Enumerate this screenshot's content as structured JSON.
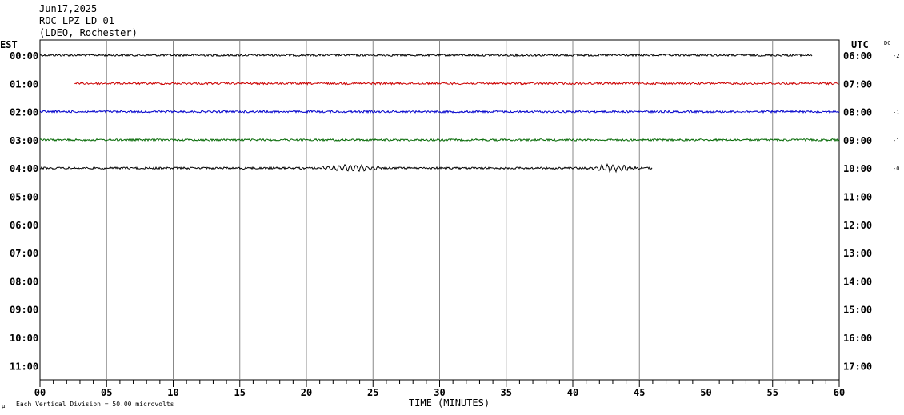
{
  "header": {
    "date": "Jun17,2025",
    "station": "ROC LPZ LD 01",
    "network": "(LDEO, Rochester)"
  },
  "chart_data": {
    "type": "line",
    "title": "Jun17,2025 ROC LPZ LD 01 (LDEO, Rochester)",
    "left_axis_label": "EST",
    "right_axis_label": "UTC",
    "dc_label": "DC",
    "xlabel": "TIME (MINUTES)",
    "xlim": [
      0,
      60
    ],
    "x_ticks": [
      "00",
      "05",
      "10",
      "15",
      "20",
      "25",
      "30",
      "35",
      "40",
      "45",
      "50",
      "55",
      "60"
    ],
    "grid": true,
    "scale_note_symbol": "μ",
    "scale_note": "Each Vertical Division =   50.00 microvolts",
    "rows": [
      {
        "est": "00:00",
        "utc": "06:00",
        "dc": "-2"
      },
      {
        "est": "01:00",
        "utc": "07:00",
        "dc": ""
      },
      {
        "est": "02:00",
        "utc": "08:00",
        "dc": "-1"
      },
      {
        "est": "03:00",
        "utc": "09:00",
        "dc": "-1"
      },
      {
        "est": "04:00",
        "utc": "10:00",
        "dc": "-0"
      },
      {
        "est": "05:00",
        "utc": "11:00",
        "dc": ""
      },
      {
        "est": "06:00",
        "utc": "12:00",
        "dc": ""
      },
      {
        "est": "07:00",
        "utc": "13:00",
        "dc": ""
      },
      {
        "est": "08:00",
        "utc": "14:00",
        "dc": ""
      },
      {
        "est": "09:00",
        "utc": "15:00",
        "dc": ""
      },
      {
        "est": "10:00",
        "utc": "16:00",
        "dc": ""
      },
      {
        "est": "11:00",
        "utc": "17:00",
        "dc": ""
      }
    ],
    "series": [
      {
        "row": 0,
        "color": "#000000",
        "x_start": 0,
        "x_end": 58.0
      },
      {
        "row": 1,
        "color": "#cc0000",
        "x_start": 2.6,
        "x_end": 60
      },
      {
        "row": 2,
        "color": "#0000cc",
        "x_start": 0,
        "x_end": 60
      },
      {
        "row": 3,
        "color": "#006600",
        "x_start": 0,
        "x_end": 60
      },
      {
        "row": 4,
        "color": "#000000",
        "x_start": 0,
        "x_end": 46.0,
        "events": [
          {
            "x_start": 20.5,
            "x_end": 26.0,
            "peak": 25
          },
          {
            "x_start": 40.8,
            "x_end": 45.0,
            "peak": 40
          }
        ]
      }
    ]
  }
}
